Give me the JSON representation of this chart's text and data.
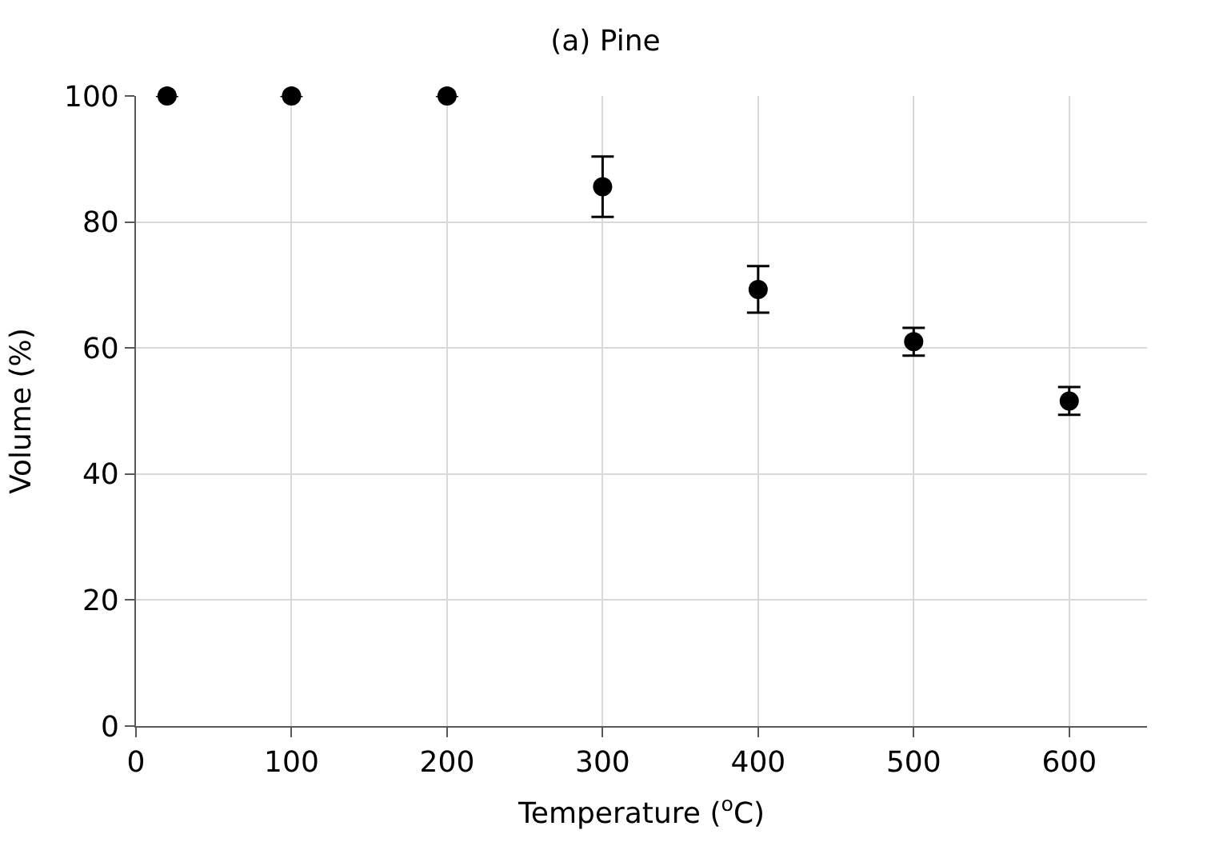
{
  "chart_data": {
    "type": "scatter",
    "title": "(a) Pine",
    "xlabel": "Temperature ($^{o}$C)",
    "ylabel": "Volume (%)",
    "x": [
      20,
      100,
      200,
      300,
      400,
      500,
      600
    ],
    "series": [
      {
        "color": "#000000",
        "values": [
          100,
          100,
          100,
          85.6,
          69.3,
          61.0,
          51.6
        ],
        "errors": [
          null,
          null,
          null,
          4.8,
          3.7,
          2.2,
          2.2
        ]
      }
    ],
    "xlim": [
      0,
      650
    ],
    "xticks": [
      0,
      100,
      200,
      300,
      400,
      500,
      600
    ],
    "ylim": [
      0,
      100
    ],
    "yticks": [
      0,
      20,
      40,
      60,
      80,
      100
    ],
    "grid": true,
    "marker": "circle"
  }
}
